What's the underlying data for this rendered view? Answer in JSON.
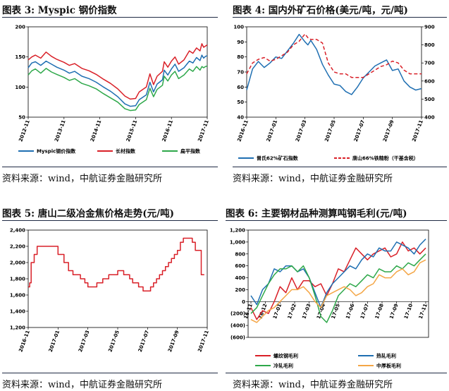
{
  "panels": [
    {
      "title": "图表 3: Myspic 钢价指数",
      "source": "资料来源：wind，中航证券金融研究所"
    },
    {
      "title": "图表 4: 国内外矿石价格(美元/吨，元/吨)",
      "source": "资料来源：wind，中航证券金融研究所"
    },
    {
      "title": "图表 5: 唐山二级冶金焦价格走势(元/吨)",
      "source": "资料来源：wind，中航证券金融研究所"
    },
    {
      "title": "图表 6: 主要钢材品种测算吨钢毛利(元/吨)",
      "source": "资料来源：wind，中航证券金融研究所"
    }
  ],
  "chart_data": [
    {
      "type": "line",
      "title": "",
      "x_ticks": [
        "2012-11",
        "2013-11",
        "2014-11",
        "2015-11",
        "2016-11",
        "2017-11"
      ],
      "ylim": [
        50,
        200
      ],
      "y_ticks": [
        "200",
        "150",
        "100",
        "50"
      ],
      "legend_position": "bottom",
      "series": [
        {
          "name": "Myspic钢价指数",
          "color": "#1f6fb2",
          "x": [
            0,
            0.1,
            0.2,
            0.35,
            0.5,
            0.65,
            0.8,
            1,
            1.15,
            1.3,
            1.5,
            1.7,
            1.9,
            2.1,
            2.3,
            2.5,
            2.7,
            2.85,
            3,
            3.1,
            3.3,
            3.4,
            3.5,
            3.6,
            3.75,
            3.8,
            3.9,
            4,
            4.1,
            4.2,
            4.35,
            4.5,
            4.6,
            4.7,
            4.8,
            4.85,
            4.9,
            4.95,
            5
          ],
          "values": [
            132,
            140,
            142,
            136,
            143,
            138,
            133,
            128,
            123,
            126,
            118,
            114,
            108,
            100,
            93,
            84,
            72,
            68,
            69,
            79,
            87,
            108,
            92,
            105,
            112,
            128,
            120,
            130,
            138,
            126,
            132,
            143,
            140,
            149,
            144,
            153,
            148,
            151,
            152
          ]
        },
        {
          "name": "长材指数",
          "color": "#d92028",
          "x": [
            0,
            0.1,
            0.2,
            0.35,
            0.5,
            0.65,
            0.8,
            1,
            1.15,
            1.3,
            1.5,
            1.7,
            1.9,
            2.1,
            2.3,
            2.5,
            2.7,
            2.85,
            3,
            3.1,
            3.3,
            3.4,
            3.5,
            3.6,
            3.75,
            3.8,
            3.9,
            4,
            4.1,
            4.2,
            4.35,
            4.5,
            4.6,
            4.7,
            4.8,
            4.85,
            4.9,
            4.95,
            5
          ],
          "values": [
            145,
            150,
            153,
            148,
            158,
            151,
            146,
            141,
            136,
            139,
            131,
            127,
            121,
            113,
            106,
            97,
            85,
            80,
            81,
            92,
            100,
            122,
            104,
            118,
            126,
            142,
            133,
            143,
            150,
            138,
            145,
            160,
            156,
            165,
            160,
            172,
            166,
            168,
            170
          ]
        },
        {
          "name": "扁平指数",
          "color": "#2ea84a",
          "x": [
            0,
            0.1,
            0.2,
            0.35,
            0.5,
            0.65,
            0.8,
            1,
            1.15,
            1.3,
            1.5,
            1.7,
            1.9,
            2.1,
            2.3,
            2.5,
            2.7,
            2.85,
            3,
            3.1,
            3.3,
            3.4,
            3.5,
            3.6,
            3.75,
            3.8,
            3.9,
            4,
            4.1,
            4.2,
            4.35,
            4.5,
            4.6,
            4.7,
            4.8,
            4.85,
            4.9,
            4.95,
            5
          ],
          "values": [
            120,
            127,
            130,
            123,
            131,
            125,
            121,
            116,
            111,
            114,
            106,
            102,
            97,
            89,
            82,
            75,
            64,
            61,
            62,
            71,
            79,
            98,
            84,
            96,
            103,
            118,
            110,
            120,
            126,
            114,
            120,
            130,
            126,
            134,
            128,
            134,
            132,
            134,
            135
          ]
        }
      ]
    },
    {
      "type": "line",
      "title": "",
      "x_ticks": [
        "2016-11",
        "2017-01",
        "2017-03",
        "2017-05",
        "2017-07",
        "2017-09",
        "2017-11"
      ],
      "ylim_left": [
        40,
        100
      ],
      "ylim_right": [
        400,
        900
      ],
      "y_ticks_left": [
        "100",
        "90",
        "80",
        "70",
        "60",
        "50",
        "40"
      ],
      "y_ticks_right": [
        "900",
        "800",
        "700",
        "600",
        "500",
        "400"
      ],
      "legend_position": "bottom",
      "series": [
        {
          "name": "普氏62%矿石指数",
          "axis": "left",
          "color": "#1f6fb2",
          "dash": false,
          "x": [
            0,
            0.2,
            0.4,
            0.6,
            0.8,
            1,
            1.2,
            1.4,
            1.6,
            1.8,
            2,
            2.1,
            2.2,
            2.4,
            2.6,
            2.8,
            3,
            3.2,
            3.4,
            3.6,
            3.8,
            4,
            4.2,
            4.4,
            4.6,
            4.8,
            5,
            5.2,
            5.4,
            5.6,
            5.8,
            6
          ],
          "values": [
            58,
            72,
            77,
            73,
            76,
            80,
            79,
            84,
            89,
            95,
            90,
            88,
            91,
            85,
            75,
            68,
            62,
            61,
            57,
            55,
            60,
            66,
            70,
            74,
            76,
            78,
            71,
            72,
            64,
            60,
            58,
            59
          ]
        },
        {
          "name": "唐山66%铁精粉（干基含税）",
          "axis": "right",
          "color": "#d92028",
          "dash": true,
          "x": [
            0,
            0.2,
            0.4,
            0.6,
            0.8,
            1,
            1.2,
            1.4,
            1.6,
            1.8,
            2,
            2.1,
            2.2,
            2.4,
            2.6,
            2.8,
            3,
            3.2,
            3.4,
            3.6,
            3.8,
            4,
            4.2,
            4.4,
            4.6,
            4.8,
            5,
            5.2,
            5.4,
            5.6,
            5.8,
            6
          ],
          "values": [
            640,
            700,
            720,
            730,
            710,
            720,
            740,
            760,
            800,
            820,
            860,
            840,
            830,
            830,
            810,
            700,
            650,
            640,
            640,
            620,
            620,
            620,
            640,
            660,
            680,
            690,
            710,
            700,
            660,
            640,
            640,
            640
          ]
        }
      ]
    },
    {
      "type": "line",
      "title": "",
      "x_ticks": [
        "2016-11",
        "2017-01",
        "2017-03",
        "2017-05",
        "2017-07",
        "2017-09",
        "2017-11"
      ],
      "ylim": [
        1200,
        2400
      ],
      "y_ticks": [
        "2,400",
        "2,200",
        "2,000",
        "1,800",
        "1,600",
        "1,400",
        "1,200"
      ],
      "series": [
        {
          "name": "",
          "color": "#d92028",
          "step": true,
          "x": [
            0,
            0.05,
            0.1,
            0.2,
            0.3,
            0.45,
            0.6,
            0.8,
            1,
            1.2,
            1.35,
            1.5,
            1.6,
            1.75,
            1.9,
            2,
            2.1,
            2.2,
            2.3,
            2.5,
            2.6,
            2.7,
            2.85,
            3,
            3.1,
            3.2,
            3.3,
            3.4,
            3.5,
            3.7,
            3.85,
            4,
            4.1,
            4.2,
            4.3,
            4.4,
            4.5,
            4.6,
            4.7,
            4.8,
            4.9,
            5,
            5.1,
            5.2,
            5.3,
            5.4,
            5.5,
            5.6,
            5.7,
            5.8,
            5.9
          ],
          "values": [
            1700,
            1750,
            2000,
            2100,
            2200,
            2200,
            2200,
            2200,
            2100,
            2000,
            1900,
            1850,
            1850,
            1800,
            1750,
            1700,
            1700,
            1700,
            1750,
            1800,
            1800,
            1850,
            1850,
            1900,
            1900,
            1850,
            1850,
            1800,
            1750,
            1700,
            1650,
            1650,
            1700,
            1750,
            1800,
            1850,
            1900,
            1950,
            2000,
            2050,
            2100,
            2150,
            2250,
            2300,
            2300,
            2300,
            2250,
            2150,
            2150,
            1850,
            1850
          ]
        }
      ]
    },
    {
      "type": "line",
      "title": "",
      "x_ticks": [
        "16-11",
        "16-12",
        "17-01",
        "17-02",
        "17-03",
        "17-04",
        "17-05",
        "17-06",
        "17-07",
        "17-08",
        "17-09",
        "17-10",
        "17-11"
      ],
      "ylim": [
        -600,
        1200
      ],
      "y_ticks": [
        "1,200",
        "1,000",
        "800",
        "600",
        "400",
        "200",
        "0",
        "(200)",
        "(400)",
        "(600)"
      ],
      "legend_position": "bottom",
      "series": [
        {
          "name": "螺纹钢毛利",
          "color": "#d92028",
          "x": [
            0,
            0.4,
            0.8,
            1.2,
            1.6,
            2,
            2.4,
            2.8,
            3.2,
            3.6,
            4,
            4.4,
            4.8,
            5.2,
            5.6,
            6,
            6.4,
            6.8,
            7.2,
            7.6,
            8,
            8.4,
            8.8,
            9.2,
            9.6,
            10,
            10.4,
            10.8,
            11.2,
            11.6,
            12
          ],
          "values": [
            -100,
            -300,
            -150,
            -200,
            0,
            250,
            150,
            400,
            200,
            350,
            350,
            250,
            300,
            100,
            300,
            550,
            500,
            700,
            900,
            800,
            700,
            800,
            850,
            900,
            750,
            800,
            1000,
            850,
            900,
            800,
            900
          ]
        },
        {
          "name": "热轧毛利",
          "color": "#1f6fb2",
          "x": [
            0,
            0.4,
            0.8,
            1.2,
            1.6,
            2,
            2.4,
            2.8,
            3.2,
            3.6,
            4,
            4.4,
            4.8,
            5.2,
            5.6,
            6,
            6.4,
            6.8,
            7.2,
            7.6,
            8,
            8.4,
            8.8,
            9.2,
            9.6,
            10,
            10.4,
            10.8,
            11.2,
            11.6,
            12
          ],
          "values": [
            100,
            -50,
            200,
            300,
            550,
            500,
            600,
            600,
            500,
            550,
            400,
            150,
            -100,
            150,
            300,
            400,
            500,
            600,
            550,
            700,
            800,
            750,
            900,
            850,
            850,
            1000,
            950,
            900,
            800,
            950,
            1050
          ]
        },
        {
          "name": "冷轧毛利",
          "color": "#2ea84a",
          "x": [
            0,
            0.4,
            0.8,
            1.2,
            1.6,
            2,
            2.4,
            2.8,
            3.2,
            3.6,
            4,
            4.4,
            4.8,
            5.2,
            5.6,
            6,
            6.4,
            6.8,
            7.2,
            7.6,
            8,
            8.4,
            8.8,
            9.2,
            9.6,
            10,
            10.4,
            10.8,
            11.2,
            11.6,
            12
          ],
          "values": [
            -200,
            -100,
            100,
            300,
            450,
            550,
            550,
            600,
            500,
            600,
            400,
            100,
            -250,
            -350,
            -150,
            100,
            200,
            300,
            250,
            350,
            450,
            400,
            550,
            500,
            500,
            600,
            550,
            650,
            600,
            700,
            800
          ]
        },
        {
          "name": "中厚板毛利",
          "color": "#f4a646",
          "x": [
            0,
            0.4,
            0.8,
            1.2,
            1.6,
            2,
            2.4,
            2.8,
            3.2,
            3.6,
            4,
            4.4,
            4.8,
            5.2,
            5.6,
            6,
            6.4,
            6.8,
            7.2,
            7.6,
            8,
            8.4,
            8.8,
            9.2,
            9.6,
            10,
            10.4,
            10.8,
            11.2,
            11.6,
            12
          ],
          "values": [
            -300,
            -350,
            -250,
            -150,
            -100,
            0,
            100,
            200,
            200,
            250,
            150,
            0,
            -100,
            100,
            150,
            200,
            250,
            200,
            100,
            150,
            250,
            300,
            450,
            400,
            400,
            500,
            550,
            450,
            500,
            650,
            700
          ]
        }
      ]
    }
  ]
}
